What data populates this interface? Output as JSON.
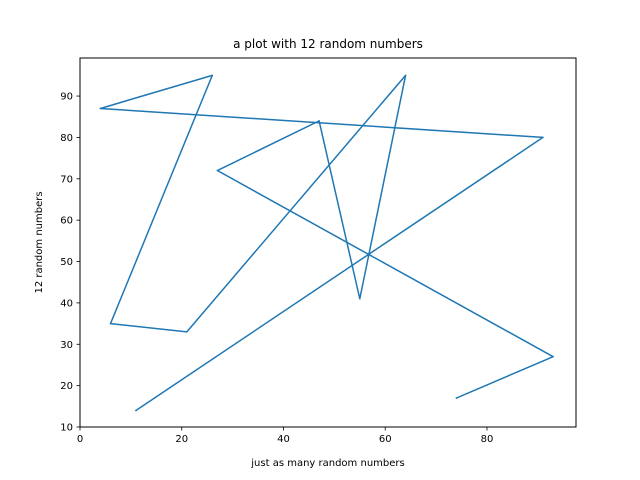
{
  "chart_data": {
    "type": "line",
    "title": "a plot with 12 random numbers",
    "xlabel": "just as many random numbers",
    "ylabel": "12 random numbers",
    "xlim": [
      0,
      97.5
    ],
    "ylim": [
      10,
      99.2
    ],
    "xticks": [
      0,
      20,
      40,
      60,
      80
    ],
    "yticks": [
      10,
      20,
      30,
      40,
      50,
      60,
      70,
      80,
      90
    ],
    "grid": false,
    "legend": "none",
    "series": [
      {
        "color": "#1f77b4",
        "x": [
          74,
          93,
          27,
          47,
          55,
          64,
          21,
          6,
          26,
          4,
          91,
          11
        ],
        "y": [
          17,
          27,
          72,
          84,
          41,
          95,
          33,
          35,
          95,
          87,
          80,
          14
        ]
      }
    ]
  }
}
